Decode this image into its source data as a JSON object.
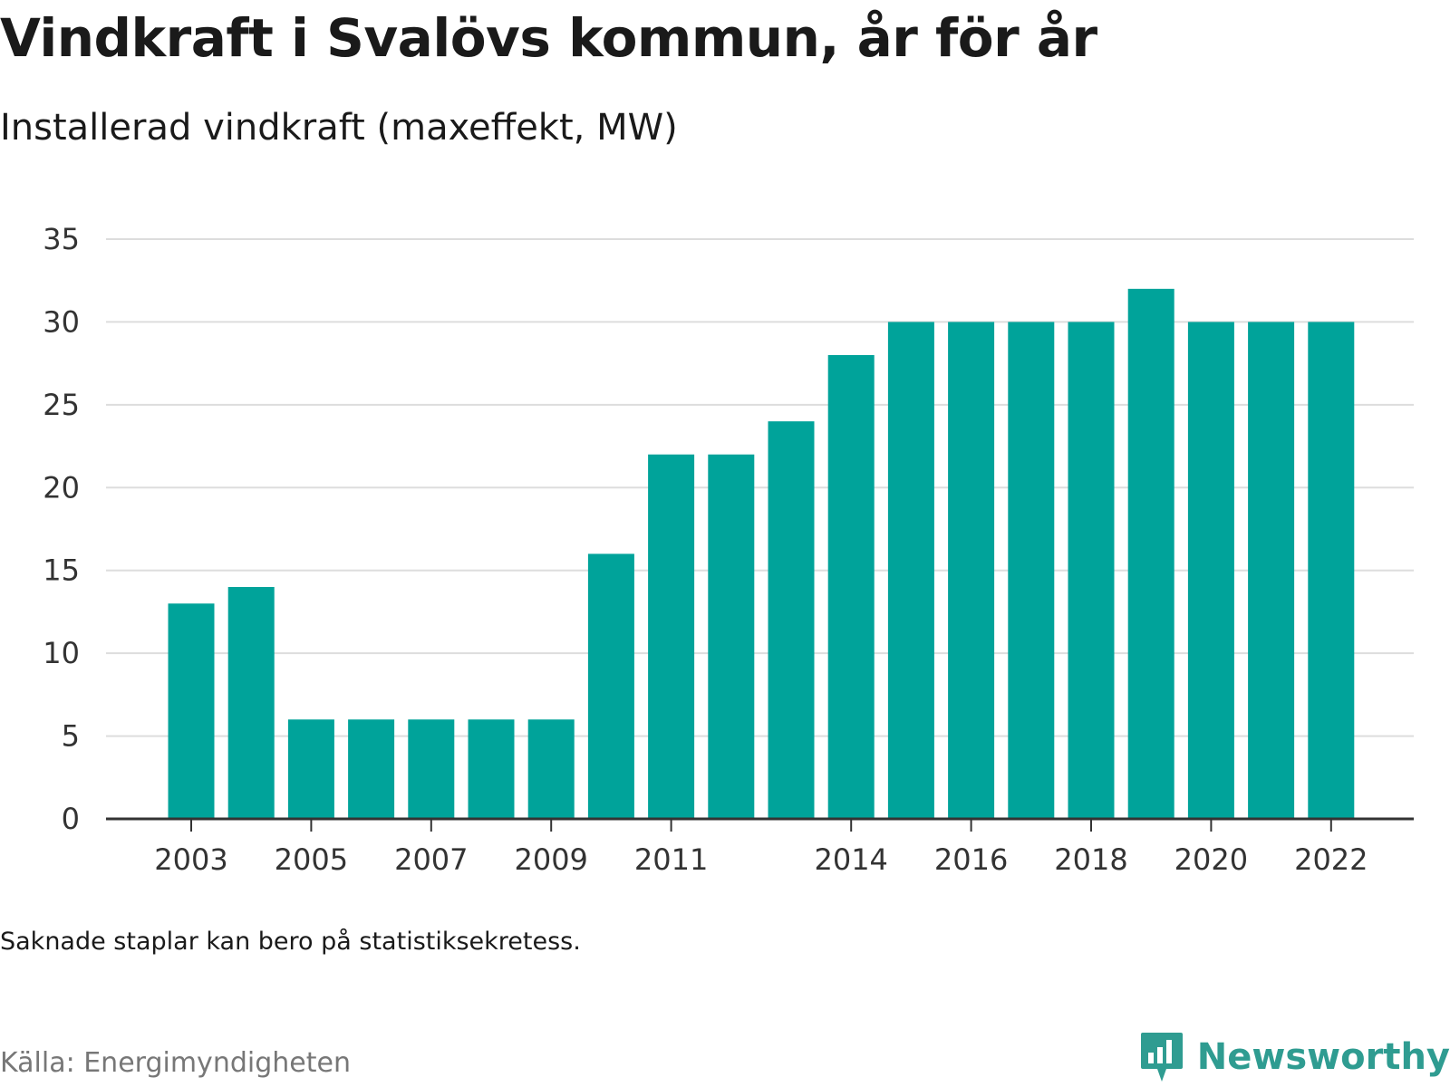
{
  "header": {
    "title": "Vindkraft i Svalövs kommun, år för år",
    "subtitle": "Installerad vindkraft (maxeffekt, MW)"
  },
  "footer": {
    "note": "Saknade staplar kan bero på statistiksekretess.",
    "source": "Källa: Energimyndigheten",
    "brand": "Newsworthy",
    "brand_icon": "newsworthy-logo-icon"
  },
  "colors": {
    "bar": "#00a39a",
    "grid": "#dddddd",
    "axis": "#333333",
    "brand": "#2f9c91"
  },
  "chart_data": {
    "type": "bar",
    "title": "Vindkraft i Svalövs kommun, år för år",
    "subtitle": "Installerad vindkraft (maxeffekt, MW)",
    "categories": [
      "2003",
      "2004",
      "2005",
      "2006",
      "2007",
      "2008",
      "2009",
      "2010",
      "2011",
      "2012",
      "2013",
      "2014",
      "2015",
      "2016",
      "2017",
      "2018",
      "2019",
      "2020",
      "2021",
      "2022"
    ],
    "values": [
      13,
      14,
      6,
      6,
      6,
      6,
      6,
      16,
      22,
      22,
      24,
      28,
      30,
      30,
      30,
      30,
      32,
      30,
      30,
      30
    ],
    "x_tick_labels": [
      "2003",
      "2005",
      "2007",
      "2009",
      "2011",
      "2014",
      "2016",
      "2018",
      "2020",
      "2022"
    ],
    "y_ticks": [
      0,
      5,
      10,
      15,
      20,
      25,
      30,
      35
    ],
    "ylim": [
      0,
      35
    ],
    "xlabel": "",
    "ylabel": "",
    "grid": true,
    "legend": "none"
  }
}
